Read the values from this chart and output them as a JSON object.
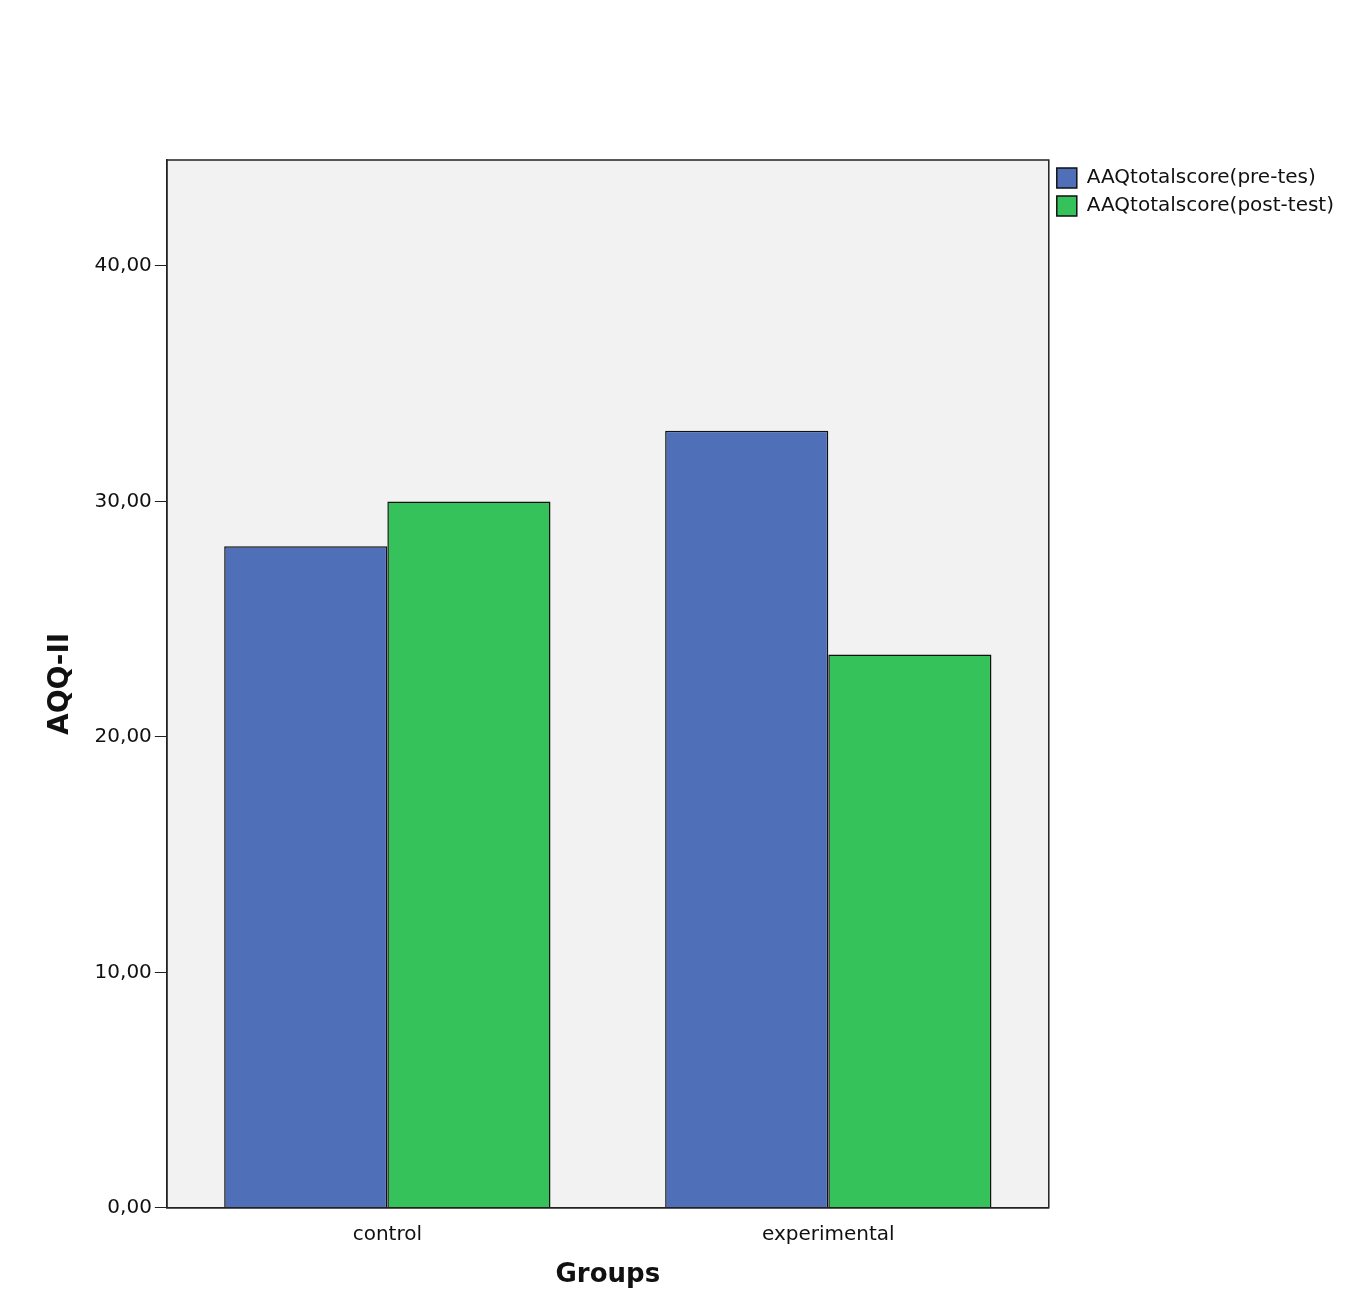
{
  "chart_data": {
    "type": "bar",
    "xlabel": "Groups",
    "ylabel": "AQQ-II",
    "categories": [
      "control",
      "experimental"
    ],
    "series": [
      {
        "name": "AAQtotalscore(pre-tes)",
        "color": "#4f6fb9",
        "values": [
          28.1,
          33.0
        ]
      },
      {
        "name": "AAQtotalscore(post-test)",
        "color": "#35c25b",
        "values": [
          30.0,
          23.5
        ]
      }
    ],
    "ylim": [
      0,
      44.5
    ],
    "yticks": [
      {
        "value": 0,
        "label": "0,00"
      },
      {
        "value": 10,
        "label": "10,00"
      },
      {
        "value": 20,
        "label": "20,00"
      },
      {
        "value": 30,
        "label": "30,00"
      },
      {
        "value": 40,
        "label": "40,00"
      }
    ],
    "grid": false,
    "legend": "top right"
  }
}
